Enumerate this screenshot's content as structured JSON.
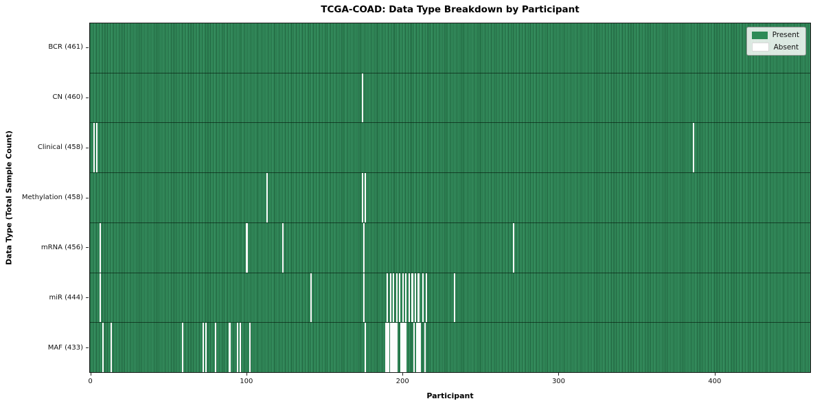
{
  "title": "TCGA-COAD: Data Type Breakdown by Participant",
  "x_axis": {
    "label": "Participant",
    "ticks": [
      "0",
      "100",
      "200",
      "300",
      "400"
    ]
  },
  "y_axis": {
    "label": "Data Type (Total Sample Count)"
  },
  "legend": {
    "items": [
      {
        "label": "Present",
        "color": "#2e8b57"
      },
      {
        "label": "Absent",
        "color": "#ffffff"
      }
    ]
  },
  "colors": {
    "present_fill": "#2e8b57",
    "cell_edge": "#1e5e3b",
    "absent_fill": "#fdfdfd",
    "axes_frame": "#1a1a1a"
  },
  "chart_data": {
    "type": "heatmap",
    "title": "TCGA-COAD: Data Type Breakdown by Participant",
    "xlabel": "Participant",
    "ylabel": "Data Type (Total Sample Count)",
    "x_ticks": [
      0,
      100,
      200,
      300,
      400
    ],
    "x_range": [
      0,
      461
    ],
    "n_participants": 461,
    "legend_entries": [
      "Present",
      "Absent"
    ],
    "legend_position": "upper right",
    "grid": false,
    "rows": [
      {
        "label": "BCR (461)",
        "data_type": "BCR",
        "present_count": 461,
        "absent_participants": []
      },
      {
        "label": "CN (460)",
        "data_type": "CN",
        "present_count": 460,
        "absent_participants": [
          174
        ]
      },
      {
        "label": "Clinical (458)",
        "data_type": "Clinical",
        "present_count": 458,
        "absent_participants": [
          2,
          4,
          386
        ]
      },
      {
        "label": "Methylation (458)",
        "data_type": "Methylation",
        "present_count": 458,
        "absent_participants": [
          113,
          174,
          176
        ]
      },
      {
        "label": "mRNA (456)",
        "data_type": "mRNA",
        "present_count": 456,
        "absent_participants": [
          6,
          100,
          123,
          175,
          271
        ]
      },
      {
        "label": "miR (444)",
        "data_type": "miR",
        "present_count": 444,
        "absent_participants": [
          6,
          141,
          175,
          190,
          192,
          194,
          196,
          198,
          200,
          202,
          204,
          206,
          208,
          210,
          213,
          215,
          233
        ]
      },
      {
        "label": "MAF (433)",
        "data_type": "MAF",
        "present_count": 433,
        "absent_participants": [
          8,
          13,
          59,
          72,
          74,
          80,
          89,
          94,
          96,
          102,
          176,
          189,
          190,
          191,
          192,
          193,
          194,
          195,
          196,
          199,
          200,
          201,
          202,
          207,
          209,
          210,
          211,
          214
        ]
      }
    ]
  }
}
